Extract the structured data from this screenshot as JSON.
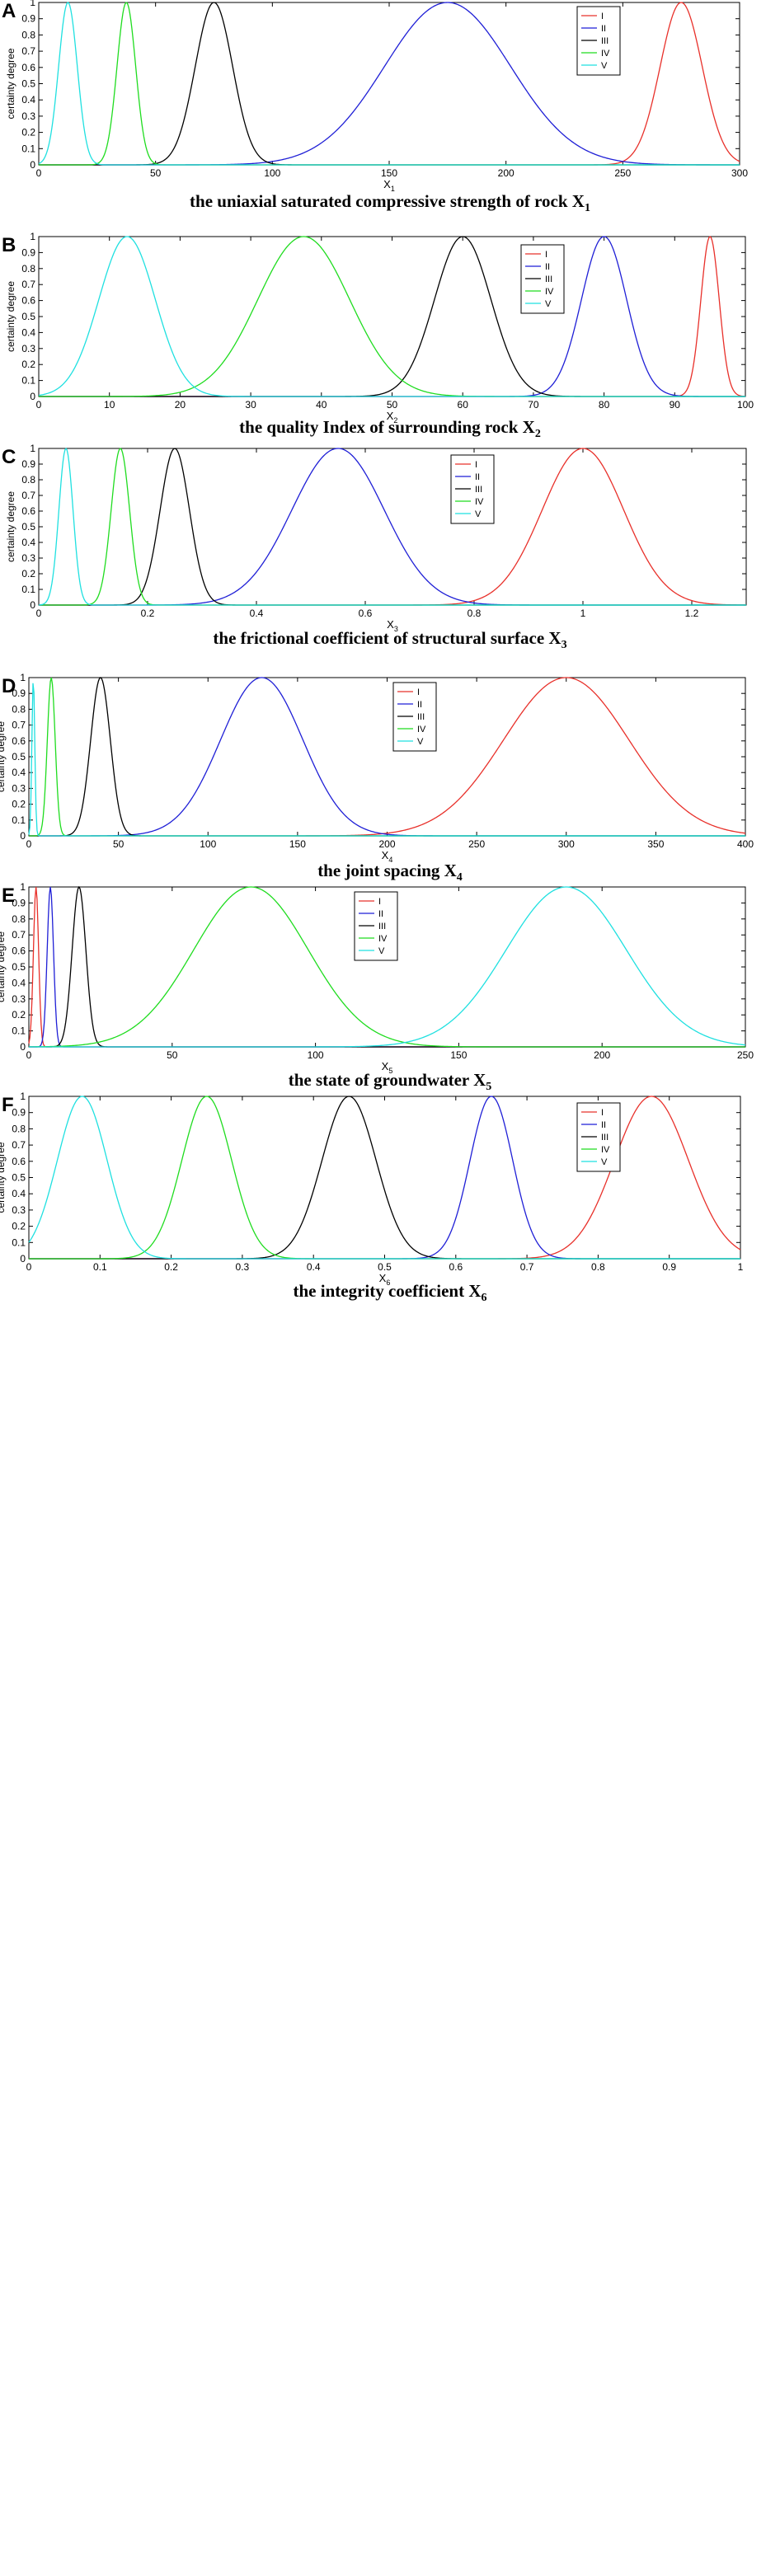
{
  "colors": {
    "I": "#e8302a",
    "II": "#1f1fd6",
    "III": "#000000",
    "IV": "#1fdc1f",
    "V": "#1fe0e0"
  },
  "chart_data": [
    {
      "type": "line",
      "panel_label": "A",
      "xlabel": "X",
      "xlabel_sub": "1",
      "ylabel": "certainty degree",
      "caption": "the uniaxial saturated compressive strength of rock X",
      "caption_sub": "1",
      "xlim": [
        0,
        300
      ],
      "ylim": [
        0,
        1
      ],
      "xticks": [
        0,
        50,
        100,
        150,
        200,
        250,
        300
      ],
      "xtick_labels": [
        "0",
        "50",
        "100",
        "150",
        "200",
        "250",
        "300"
      ],
      "yticks": [
        0,
        0.1,
        0.2,
        0.3,
        0.4,
        0.5,
        0.6,
        0.7,
        0.8,
        0.9,
        1
      ],
      "ytick_labels": [
        "0",
        "0.1",
        "0.2",
        "0.3",
        "0.4",
        "0.5",
        "0.6",
        "0.7",
        "0.8",
        "0.9",
        "1"
      ],
      "legend": "top-right",
      "series": [
        {
          "name": "I",
          "peak_x": 275,
          "sigma": 9
        },
        {
          "name": "II",
          "peak_x": 175,
          "sigma": 27
        },
        {
          "name": "III",
          "peak_x": 75,
          "sigma": 8
        },
        {
          "name": "IV",
          "peak_x": 37.5,
          "sigma": 4
        },
        {
          "name": "V",
          "peak_x": 12.5,
          "sigma": 4
        }
      ]
    },
    {
      "type": "line",
      "panel_label": "B",
      "xlabel": "X",
      "xlabel_sub": "2",
      "ylabel": "certainty degree",
      "caption": "the quality Index of surrounding rock X",
      "caption_sub": "2",
      "xlim": [
        0,
        100
      ],
      "ylim": [
        0,
        1
      ],
      "xticks": [
        0,
        10,
        20,
        30,
        40,
        50,
        60,
        70,
        80,
        90,
        100
      ],
      "xtick_labels": [
        "0",
        "10",
        "20",
        "30",
        "40",
        "50",
        "60",
        "70",
        "80",
        "90",
        "100"
      ],
      "yticks": [
        0,
        0.1,
        0.2,
        0.3,
        0.4,
        0.5,
        0.6,
        0.7,
        0.8,
        0.9,
        1
      ],
      "ytick_labels": [
        "0",
        "0.1",
        "0.2",
        "0.3",
        "0.4",
        "0.5",
        "0.6",
        "0.7",
        "0.8",
        "0.9",
        "1"
      ],
      "legend": "top-right",
      "series": [
        {
          "name": "I",
          "peak_x": 95,
          "sigma": 1.3
        },
        {
          "name": "II",
          "peak_x": 80,
          "sigma": 3.2
        },
        {
          "name": "III",
          "peak_x": 60,
          "sigma": 4
        },
        {
          "name": "IV",
          "peak_x": 37.5,
          "sigma": 6.5
        },
        {
          "name": "V",
          "peak_x": 12.5,
          "sigma": 4
        }
      ]
    },
    {
      "type": "line",
      "panel_label": "C",
      "xlabel": "X",
      "xlabel_sub": "3",
      "ylabel": "certainty degree",
      "caption": "the frictional coefficient of structural surface X",
      "caption_sub": "3",
      "xlim": [
        0,
        1.3
      ],
      "ylim": [
        0,
        1
      ],
      "xticks": [
        0,
        0.2,
        0.4,
        0.6,
        0.8,
        1,
        1.2
      ],
      "xtick_labels": [
        "0",
        "0.2",
        "0.4",
        "0.6",
        "0.8",
        "1",
        "1.2"
      ],
      "yticks": [
        0,
        0.1,
        0.2,
        0.3,
        0.4,
        0.5,
        0.6,
        0.7,
        0.8,
        0.9,
        1
      ],
      "ytick_labels": [
        "0",
        "0.1",
        "0.2",
        "0.3",
        "0.4",
        "0.5",
        "0.6",
        "0.7",
        "0.8",
        "0.9",
        "1"
      ],
      "legend": "top-center",
      "series": [
        {
          "name": "I",
          "peak_x": 1.0,
          "sigma": 0.075
        },
        {
          "name": "II",
          "peak_x": 0.55,
          "sigma": 0.085
        },
        {
          "name": "III",
          "peak_x": 0.25,
          "sigma": 0.027
        },
        {
          "name": "IV",
          "peak_x": 0.15,
          "sigma": 0.017
        },
        {
          "name": "V",
          "peak_x": 0.05,
          "sigma": 0.013
        }
      ]
    },
    {
      "type": "line",
      "panel_label": "D",
      "xlabel": "X",
      "xlabel_sub": "4",
      "ylabel": "certainty degree",
      "caption": "the joint spacing X",
      "caption_sub": "4",
      "xlim": [
        0,
        400
      ],
      "ylim": [
        0,
        1
      ],
      "xticks": [
        0,
        50,
        100,
        150,
        200,
        250,
        300,
        350,
        400
      ],
      "xtick_labels": [
        "0",
        "50",
        "100",
        "150",
        "200",
        "250",
        "300",
        "350",
        "400"
      ],
      "yticks": [
        0,
        0.1,
        0.2,
        0.3,
        0.4,
        0.5,
        0.6,
        0.7,
        0.8,
        0.9,
        1
      ],
      "ytick_labels": [
        "0",
        "0.1",
        "0.2",
        "0.3",
        "0.4",
        "0.5",
        "0.6",
        "0.7",
        "0.8",
        "0.9",
        "1"
      ],
      "legend": "top-center",
      "series": [
        {
          "name": "I",
          "peak_x": 300,
          "sigma": 35
        },
        {
          "name": "II",
          "peak_x": 130,
          "sigma": 23
        },
        {
          "name": "III",
          "peak_x": 40,
          "sigma": 5.5
        },
        {
          "name": "IV",
          "peak_x": 12.5,
          "sigma": 2.2
        },
        {
          "name": "V",
          "peak_x": 2.5,
          "sigma": 0.8
        }
      ]
    },
    {
      "type": "line",
      "panel_label": "E",
      "xlabel": "X",
      "xlabel_sub": "5",
      "ylabel": "certainty degree",
      "caption": "the state of groundwater X",
      "caption_sub": "5",
      "xlim": [
        0,
        250
      ],
      "ylim": [
        0,
        1
      ],
      "xticks": [
        0,
        50,
        100,
        150,
        200,
        250
      ],
      "xtick_labels": [
        "0",
        "50",
        "100",
        "150",
        "200",
        "250"
      ],
      "yticks": [
        0,
        0.1,
        0.2,
        0.3,
        0.4,
        0.5,
        0.6,
        0.7,
        0.8,
        0.9,
        1
      ],
      "ytick_labels": [
        "0",
        "0.1",
        "0.2",
        "0.3",
        "0.4",
        "0.5",
        "0.6",
        "0.7",
        "0.8",
        "0.9",
        "1"
      ],
      "legend": "top-center",
      "series": [
        {
          "name": "I",
          "peak_x": 2.5,
          "sigma": 0.9
        },
        {
          "name": "II",
          "peak_x": 7.5,
          "sigma": 1.1
        },
        {
          "name": "III",
          "peak_x": 17.5,
          "sigma": 2.4
        },
        {
          "name": "IV",
          "peak_x": 77.5,
          "sigma": 20
        },
        {
          "name": "V",
          "peak_x": 187.5,
          "sigma": 21
        }
      ]
    },
    {
      "type": "line",
      "panel_label": "F",
      "xlabel": "X",
      "xlabel_sub": "6",
      "ylabel": "certainty degree",
      "caption": "the integrity coefficient X",
      "caption_sub": "6",
      "xlim": [
        0,
        1
      ],
      "ylim": [
        0,
        1
      ],
      "xticks": [
        0,
        0.1,
        0.2,
        0.3,
        0.4,
        0.5,
        0.6,
        0.7,
        0.8,
        0.9,
        1
      ],
      "xtick_labels": [
        "0",
        "0.1",
        "0.2",
        "0.3",
        "0.4",
        "0.5",
        "0.6",
        "0.7",
        "0.8",
        "0.9",
        "1"
      ],
      "yticks": [
        0,
        0.1,
        0.2,
        0.3,
        0.4,
        0.5,
        0.6,
        0.7,
        0.8,
        0.9,
        1
      ],
      "ytick_labels": [
        "0",
        "0.1",
        "0.2",
        "0.3",
        "0.4",
        "0.5",
        "0.6",
        "0.7",
        "0.8",
        "0.9",
        "1"
      ],
      "legend": "top-right",
      "series": [
        {
          "name": "I",
          "peak_x": 0.875,
          "sigma": 0.052
        },
        {
          "name": "II",
          "peak_x": 0.65,
          "sigma": 0.03
        },
        {
          "name": "III",
          "peak_x": 0.45,
          "sigma": 0.038
        },
        {
          "name": "IV",
          "peak_x": 0.25,
          "sigma": 0.035
        },
        {
          "name": "V",
          "peak_x": 0.075,
          "sigma": 0.035
        }
      ]
    }
  ]
}
